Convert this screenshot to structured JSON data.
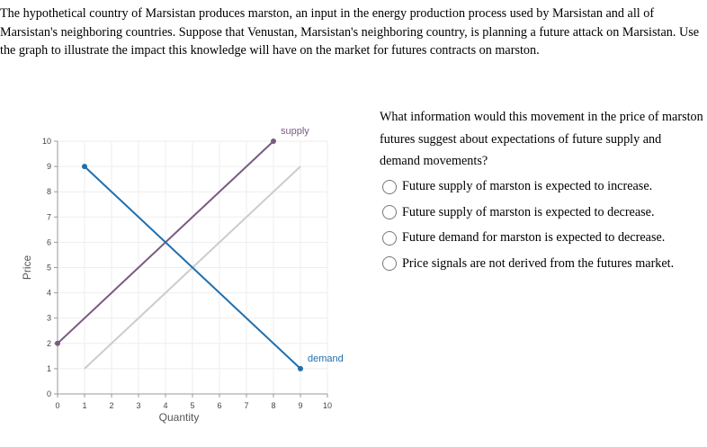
{
  "question": {
    "intro": "The hypothetical country of Marsistan produces marston, an input in the energy production process used by Marsistan and all of Marsistan's neighboring countries. Suppose that Venustan, Marsistan's neighboring country, is planning a future attack on Marsistan. Use the graph to illustrate the impact this knowledge will have on the market for futures contracts on marston.",
    "prompt": "What information would this movement in the price of marston futures suggest about expectations of future supply and demand movements?",
    "options": [
      "Future supply of marston is expected to increase.",
      "Future supply of marston is expected to decrease.",
      "Future demand for marston is expected to decrease.",
      "Price signals are not derived from the futures market."
    ]
  },
  "chart_data": {
    "type": "line",
    "xlabel": "Quantity",
    "ylabel": "Price",
    "xlim": [
      0,
      10
    ],
    "ylim": [
      0,
      10
    ],
    "xticks": [
      0,
      1,
      2,
      3,
      4,
      5,
      6,
      7,
      8,
      9,
      10
    ],
    "yticks": [
      0,
      1,
      2,
      3,
      4,
      5,
      6,
      7,
      8,
      9,
      10
    ],
    "grid": true,
    "series": [
      {
        "name": "",
        "color": "#cccccc",
        "points": [
          [
            1,
            1
          ],
          [
            9,
            9
          ]
        ],
        "markers": false
      },
      {
        "name": "supply",
        "color": "#7a5a83",
        "points": [
          [
            0,
            2
          ],
          [
            8,
            10
          ]
        ],
        "markers": true
      },
      {
        "name": "demand",
        "color": "#1f6fae",
        "points": [
          [
            1,
            9
          ],
          [
            9,
            1
          ]
        ],
        "markers": true
      }
    ]
  }
}
